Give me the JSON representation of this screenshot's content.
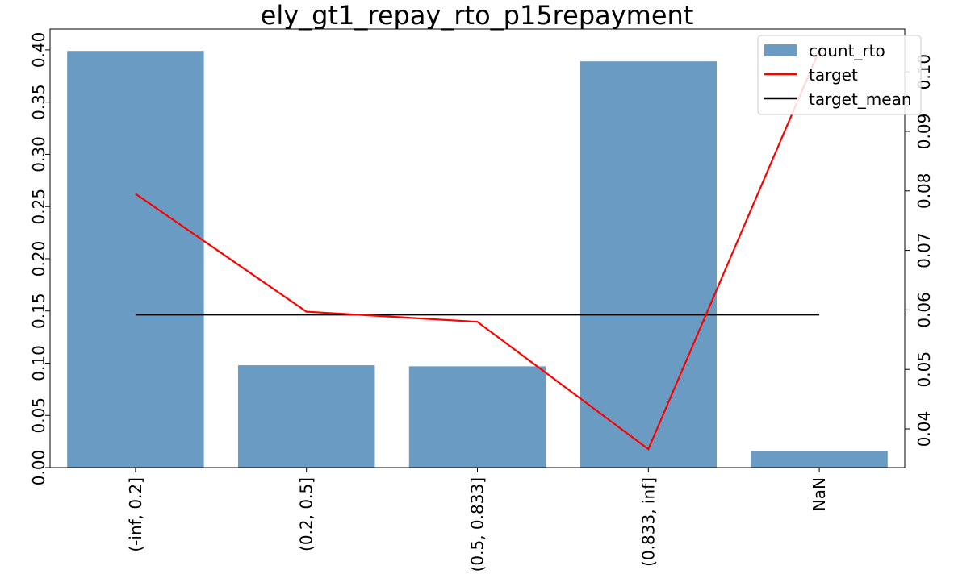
{
  "chart_data": {
    "type": "bar",
    "title": "ely_gt1_repay_rto_p15repayment",
    "categories": [
      "(-inf, 0.2]",
      "(0.2, 0.5]",
      "(0.5, 0.833]",
      "(0.833, inf]",
      "NaN"
    ],
    "series": [
      {
        "name": "count_rto",
        "type": "bar",
        "axis": "left",
        "color": "#6a9bc3",
        "values": [
          0.399,
          0.098,
          0.097,
          0.389,
          0.016
        ]
      },
      {
        "name": "target",
        "type": "line",
        "axis": "right",
        "color": "#ff0000",
        "values": [
          0.0795,
          0.0597,
          0.058,
          0.0366,
          0.1036
        ]
      },
      {
        "name": "target_mean",
        "type": "line",
        "axis": "right",
        "color": "#000000",
        "values": [
          0.0592,
          0.0592,
          0.0592,
          0.0592,
          0.0592
        ]
      }
    ],
    "ylim_left": [
      0,
      0.42
    ],
    "yticks_left": [
      "0.00",
      "0.05",
      "0.10",
      "0.15",
      "0.20",
      "0.25",
      "0.30",
      "0.35",
      "0.40"
    ],
    "ylim_right": [
      0.0335,
      0.1072
    ],
    "yticks_right": [
      "0.04",
      "0.05",
      "0.06",
      "0.07",
      "0.08",
      "0.09",
      "0.10"
    ],
    "legend": "top-right",
    "grid": false
  }
}
